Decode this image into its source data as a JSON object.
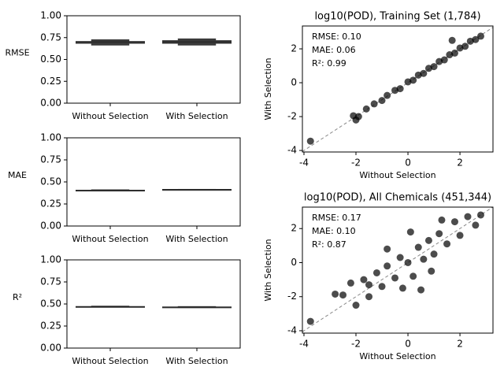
{
  "chart_data": [
    {
      "type": "box",
      "ylabel": "RMSE",
      "categories": [
        "Without Selection",
        "With Selection"
      ],
      "color": "#3a3a3a",
      "boxes": [
        {
          "whislo": 0.66,
          "q1": 0.68,
          "med": 0.7,
          "q3": 0.71,
          "whishi": 0.73
        },
        {
          "whislo": 0.66,
          "q1": 0.68,
          "med": 0.7,
          "q3": 0.72,
          "whishi": 0.74
        }
      ],
      "ylim": [
        0,
        1
      ],
      "yticks": [
        {
          "value": 0,
          "label": "0.00"
        },
        {
          "value": 0.25,
          "label": "0.25"
        },
        {
          "value": 0.5,
          "label": "0.50"
        },
        {
          "value": 0.75,
          "label": "0.75"
        },
        {
          "value": 1,
          "label": "1.00"
        }
      ]
    },
    {
      "type": "box",
      "ylabel": "MAE",
      "categories": [
        "Without Selection",
        "With Selection"
      ],
      "color": "#3a3a3a",
      "boxes": [
        {
          "whislo": 0.395,
          "q1": 0.4,
          "med": 0.405,
          "q3": 0.41,
          "whishi": 0.415
        },
        {
          "whislo": 0.41,
          "q1": 0.412,
          "med": 0.415,
          "q3": 0.418,
          "whishi": 0.42
        }
      ],
      "ylim": [
        0,
        1
      ],
      "yticks": [
        {
          "value": 0,
          "label": "0.00"
        },
        {
          "value": 0.25,
          "label": "0.25"
        },
        {
          "value": 0.5,
          "label": "0.50"
        },
        {
          "value": 0.75,
          "label": "0.75"
        },
        {
          "value": 1,
          "label": "1.00"
        }
      ]
    },
    {
      "type": "box",
      "ylabel": "R²",
      "categories": [
        "Without Selection",
        "With Selection"
      ],
      "color": "#3a3a3a",
      "boxes": [
        {
          "whislo": 0.46,
          "q1": 0.465,
          "med": 0.47,
          "q3": 0.475,
          "whishi": 0.48
        },
        {
          "whislo": 0.455,
          "q1": 0.46,
          "med": 0.465,
          "q3": 0.47,
          "whishi": 0.475
        }
      ],
      "ylim": [
        0,
        1
      ],
      "yticks": [
        {
          "value": 0,
          "label": "0.00"
        },
        {
          "value": 0.25,
          "label": "0.25"
        },
        {
          "value": 0.5,
          "label": "0.50"
        },
        {
          "value": 0.75,
          "label": "0.75"
        },
        {
          "value": 1,
          "label": "1.00"
        }
      ]
    },
    {
      "type": "scatter",
      "title": "log10(POD), Training Set (1,784)",
      "xlabel": "Without Selection",
      "ylabel": "With Selection",
      "annotations": [
        "RMSE: 0.10",
        "MAE: 0.06",
        "R²: 0.99"
      ],
      "color": "#000000",
      "x": [
        -3.75,
        -2.1,
        -1.9,
        -1.6,
        -1.3,
        -1.0,
        -0.8,
        -0.5,
        -0.3,
        0,
        0.2,
        0.4,
        0.6,
        0.8,
        1.0,
        1.2,
        1.4,
        1.6,
        1.8,
        2.0,
        2.2,
        2.4,
        2.6,
        2.8,
        -2.0,
        1.7
      ],
      "y": [
        -3.45,
        -1.95,
        -2.0,
        -1.55,
        -1.25,
        -1.05,
        -0.75,
        -0.45,
        -0.35,
        0.05,
        0.15,
        0.45,
        0.55,
        0.85,
        0.95,
        1.25,
        1.35,
        1.65,
        1.75,
        2.05,
        2.15,
        2.45,
        2.55,
        2.75,
        -2.2,
        2.5
      ],
      "xlim": [
        -4.06,
        3.27
      ],
      "ylim": [
        -4.09,
        3.35
      ],
      "xticks": [
        -4,
        -2,
        0,
        2
      ],
      "yticks": [
        -4,
        -2,
        0,
        2
      ]
    },
    {
      "type": "scatter",
      "title": "log10(POD), All Chemicals (451,344)",
      "xlabel": "Without Selection",
      "ylabel": "With Selection",
      "annotations": [
        "RMSE: 0.17",
        "MAE: 0.10",
        "R²: 0.87"
      ],
      "color": "#000000",
      "x": [
        -3.75,
        -2.8,
        -2.5,
        -2.2,
        -2.0,
        -1.7,
        -1.5,
        -1.2,
        -1.0,
        -0.8,
        -0.5,
        -0.3,
        0,
        0.2,
        0.4,
        0.6,
        0.8,
        1.0,
        1.2,
        1.5,
        1.8,
        2.0,
        2.3,
        2.6,
        2.8,
        -1.5,
        0.5,
        1.3,
        -0.8,
        0.1,
        -0.2,
        0.9
      ],
      "y": [
        -3.45,
        -1.85,
        -1.9,
        -1.2,
        -2.5,
        -1.0,
        -1.3,
        -0.6,
        -1.4,
        -0.2,
        -0.9,
        0.3,
        0,
        -0.8,
        0.9,
        0.2,
        1.3,
        0.5,
        1.7,
        1.1,
        2.4,
        1.6,
        2.7,
        2.2,
        2.8,
        -2.0,
        -1.6,
        2.5,
        0.8,
        1.8,
        -1.5,
        -0.5
      ],
      "xlim": [
        -4.06,
        3.27
      ],
      "ylim": [
        -4.14,
        3.26
      ],
      "xticks": [
        -4,
        -2,
        0,
        2
      ],
      "yticks": [
        -4,
        -2,
        0,
        2
      ]
    }
  ]
}
